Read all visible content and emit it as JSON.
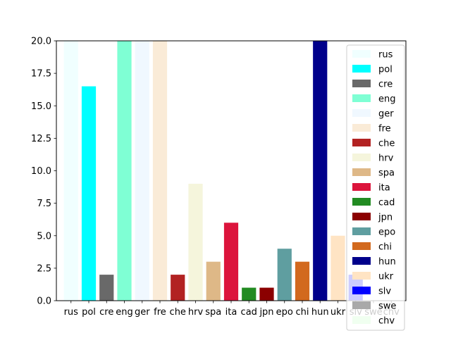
{
  "chart_data": {
    "type": "bar",
    "title": "",
    "xlabel": "",
    "ylabel": "",
    "ylim": [
      0,
      20
    ],
    "yticks": [
      "0.0",
      "2.5",
      "5.0",
      "7.5",
      "10.0",
      "12.5",
      "15.0",
      "17.5",
      "20.0"
    ],
    "grid": false,
    "legend_position": "top-right",
    "categories": [
      "rus",
      "pol",
      "cre",
      "eng",
      "ger",
      "fre",
      "che",
      "hrv",
      "spa",
      "ita",
      "cad",
      "jpn",
      "epo",
      "chi",
      "hun",
      "ukr",
      "slv",
      "swe",
      "chv"
    ],
    "values": [
      20,
      16.5,
      2,
      20,
      20,
      20,
      2,
      9,
      3,
      6,
      1,
      1,
      4,
      3,
      20,
      5,
      2,
      0,
      0
    ],
    "colors": [
      "#f0ffff",
      "#00ffff",
      "#696969",
      "#7fffd4",
      "#f0f8ff",
      "#faebd7",
      "#b22222",
      "#f5f5dc",
      "#deb887",
      "#dc143c",
      "#228b22",
      "#8b0000",
      "#5f9ea0",
      "#d2691e",
      "#00008b",
      "#ffe4c4",
      "#0000ff",
      "#a9a9a9",
      "#f0fff0"
    ]
  }
}
